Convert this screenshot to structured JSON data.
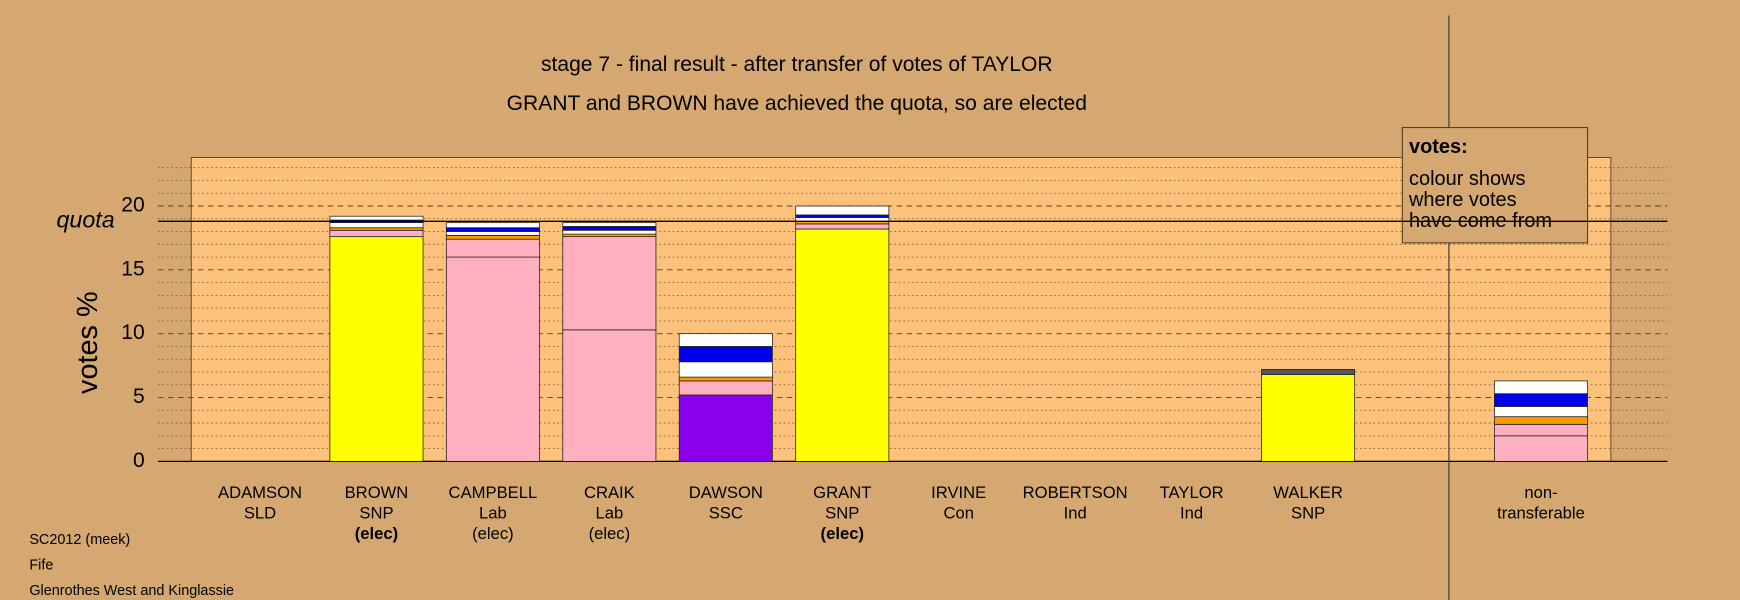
{
  "chart_data": {
    "type": "bar",
    "stacked": true,
    "title": "stage 7 - final result - after transfer of votes of TAYLOR",
    "subtitle": "GRANT and BROWN have achieved the quota, so are elected",
    "y_label": "votes %",
    "categories": [
      [
        "ADAMSON",
        "SLD"
      ],
      [
        "BROWN",
        "SNP",
        "(elec)"
      ],
      [
        "CAMPBELL",
        "Lab",
        "(elec)"
      ],
      [
        "CRAIK",
        "Lab",
        "(elec)"
      ],
      [
        "DAWSON",
        "SSC"
      ],
      [
        "GRANT",
        "SNP",
        "(elec)"
      ],
      [
        "IRVINE",
        "Con"
      ],
      [
        "ROBERTSON",
        "Ind"
      ],
      [
        "TAYLOR",
        "Ind"
      ],
      [
        "WALKER",
        "SNP"
      ],
      [
        "non-",
        "transferable"
      ]
    ],
    "bold_status": [
      false,
      true,
      false,
      false,
      false,
      true,
      false,
      false,
      false,
      false,
      false
    ],
    "series": [
      {
        "color": "#ffff00",
        "values": [
          null,
          17.6,
          null,
          null,
          null,
          18.2,
          null,
          null,
          null,
          6.8,
          null
        ]
      },
      {
        "color": "#8800ee",
        "values": [
          null,
          null,
          null,
          null,
          5.2,
          null,
          null,
          null,
          null,
          null,
          null
        ]
      },
      {
        "color": "#ffb0c0",
        "values": [
          null,
          null,
          16.0,
          10.3,
          null,
          null,
          null,
          null,
          null,
          null,
          2.0
        ]
      },
      {
        "color": "#ffb0c0",
        "values": [
          null,
          0.5,
          1.4,
          7.3,
          1.1,
          0.4,
          null,
          null,
          null,
          null,
          0.9
        ]
      },
      {
        "color": "#ff9900",
        "values": [
          null,
          0.2,
          0.3,
          0.2,
          0.3,
          0.2,
          null,
          null,
          null,
          null,
          0.6
        ]
      },
      {
        "color": "#ffffff",
        "values": [
          null,
          0.4,
          0.3,
          0.3,
          1.2,
          0.3,
          null,
          null,
          null,
          null,
          0.8
        ]
      },
      {
        "color": "#0000ee",
        "values": [
          null,
          0.2,
          0.3,
          0.3,
          1.2,
          0.2,
          null,
          null,
          null,
          null,
          1.0
        ]
      },
      {
        "color": "#ffffff",
        "values": [
          null,
          0.3,
          0.4,
          0.3,
          1.0,
          0.7,
          null,
          null,
          null,
          null,
          1.0
        ]
      },
      {
        "color": "#555555",
        "values": [
          null,
          null,
          null,
          null,
          null,
          null,
          null,
          null,
          null,
          0.4,
          null
        ]
      }
    ],
    "quota": {
      "label": "quota",
      "value": 18.8
    },
    "ylim": [
      0,
      23.8
    ],
    "yticks": [
      0,
      5,
      10,
      15,
      20
    ],
    "minor_yticks": [
      1,
      2,
      3,
      4,
      6,
      7,
      8,
      9,
      11,
      12,
      13,
      14,
      16,
      17,
      18,
      19,
      21,
      22,
      23
    ],
    "grid": true,
    "legend": {
      "title": "votes:",
      "lines": [
        "colour shows",
        "where votes",
        "have come from"
      ]
    },
    "footnotes": [
      "SC2012 (meek)",
      "Fife",
      "Glenrothes West and Kinglassie"
    ]
  }
}
